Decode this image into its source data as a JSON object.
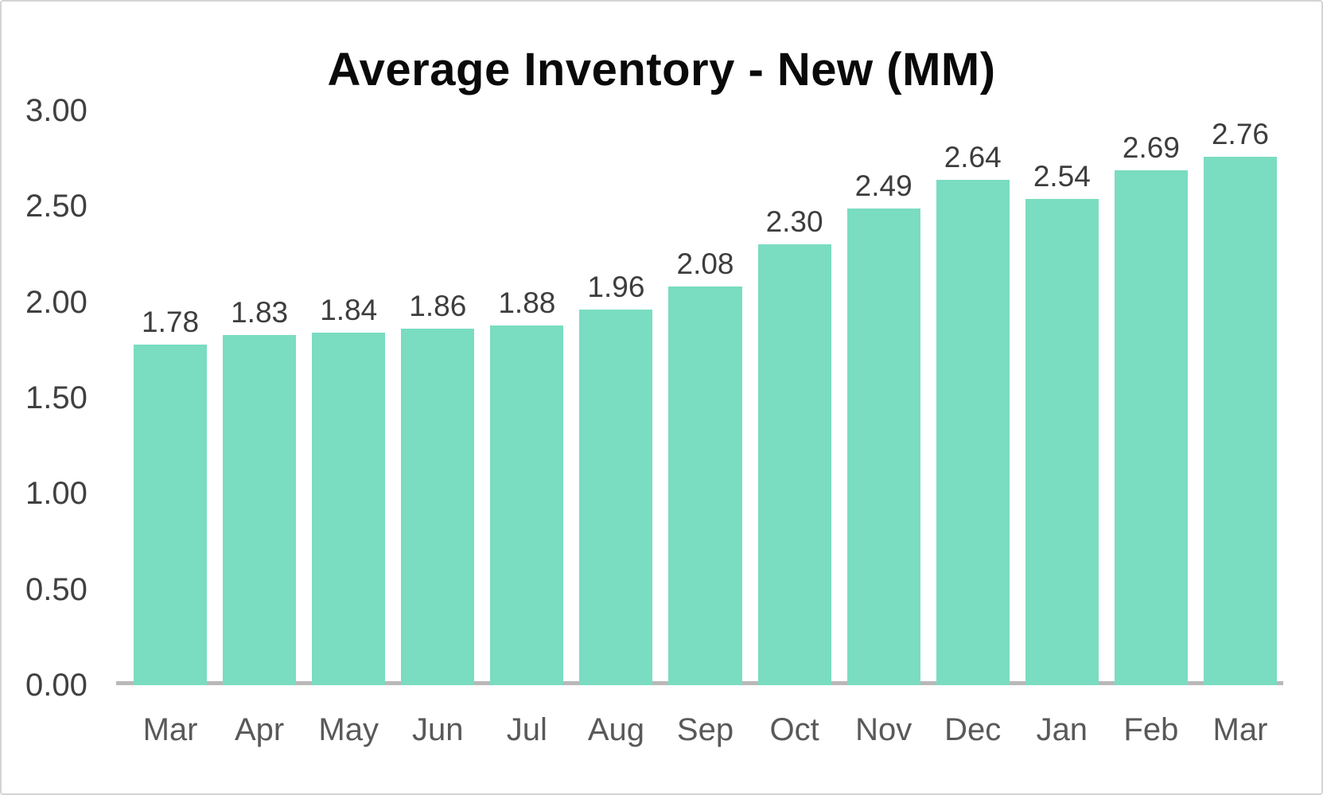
{
  "chart": {
    "colors": {
      "bar": "#7ADCC1",
      "axis_line": "#B8B8B8",
      "title_text": "#0A0A0A",
      "value_label_text": "#3D3D3D",
      "tick_label_text": "#404040",
      "category_label_text": "#595959"
    }
  },
  "chart_data": {
    "type": "bar",
    "title": "Average Inventory - New (MM)",
    "categories": [
      "Mar",
      "Apr",
      "May",
      "Jun",
      "Jul",
      "Aug",
      "Sep",
      "Oct",
      "Nov",
      "Dec",
      "Jan",
      "Feb",
      "Mar"
    ],
    "values": [
      1.78,
      1.83,
      1.84,
      1.86,
      1.88,
      1.96,
      2.08,
      2.3,
      2.49,
      2.64,
      2.54,
      2.69,
      2.76
    ],
    "value_labels": [
      "1.78",
      "1.83",
      "1.84",
      "1.86",
      "1.88",
      "1.96",
      "2.08",
      "2.30",
      "2.49",
      "2.64",
      "2.54",
      "2.69",
      "2.76"
    ],
    "xlabel": "",
    "ylabel": "",
    "ylim": [
      0,
      3.0
    ],
    "yticks": [
      0.0,
      0.5,
      1.0,
      1.5,
      2.0,
      2.5,
      3.0
    ],
    "ytick_labels": [
      "0.00",
      "0.50",
      "1.00",
      "1.50",
      "2.00",
      "2.50",
      "3.00"
    ],
    "grid": false,
    "legend": false,
    "value_labels_position": "above-bar"
  }
}
